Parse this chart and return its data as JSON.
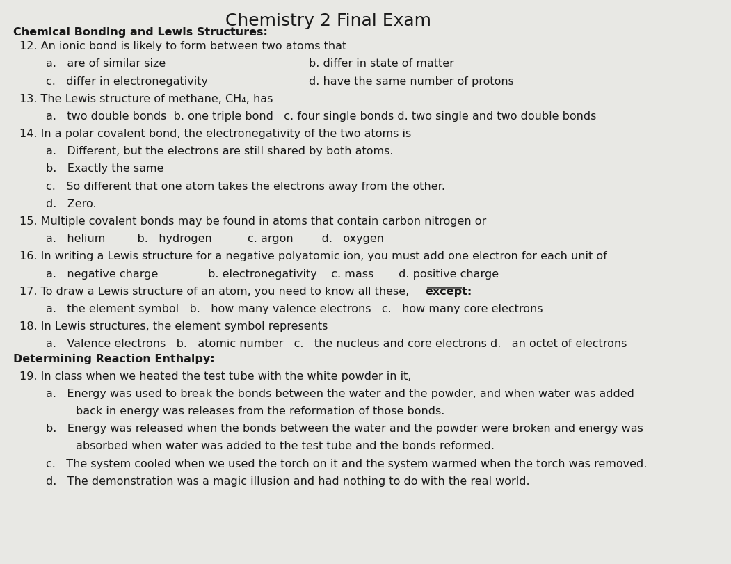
{
  "title": "Chemistry 2 Final Exam",
  "title_fontsize": 18,
  "bg_color": "#e8e8e4",
  "text_color": "#1a1a1a",
  "section1_header": "Chemical Bonding and Lewis Structures:",
  "section2_header": "Determining Reaction Enthalpy:"
}
